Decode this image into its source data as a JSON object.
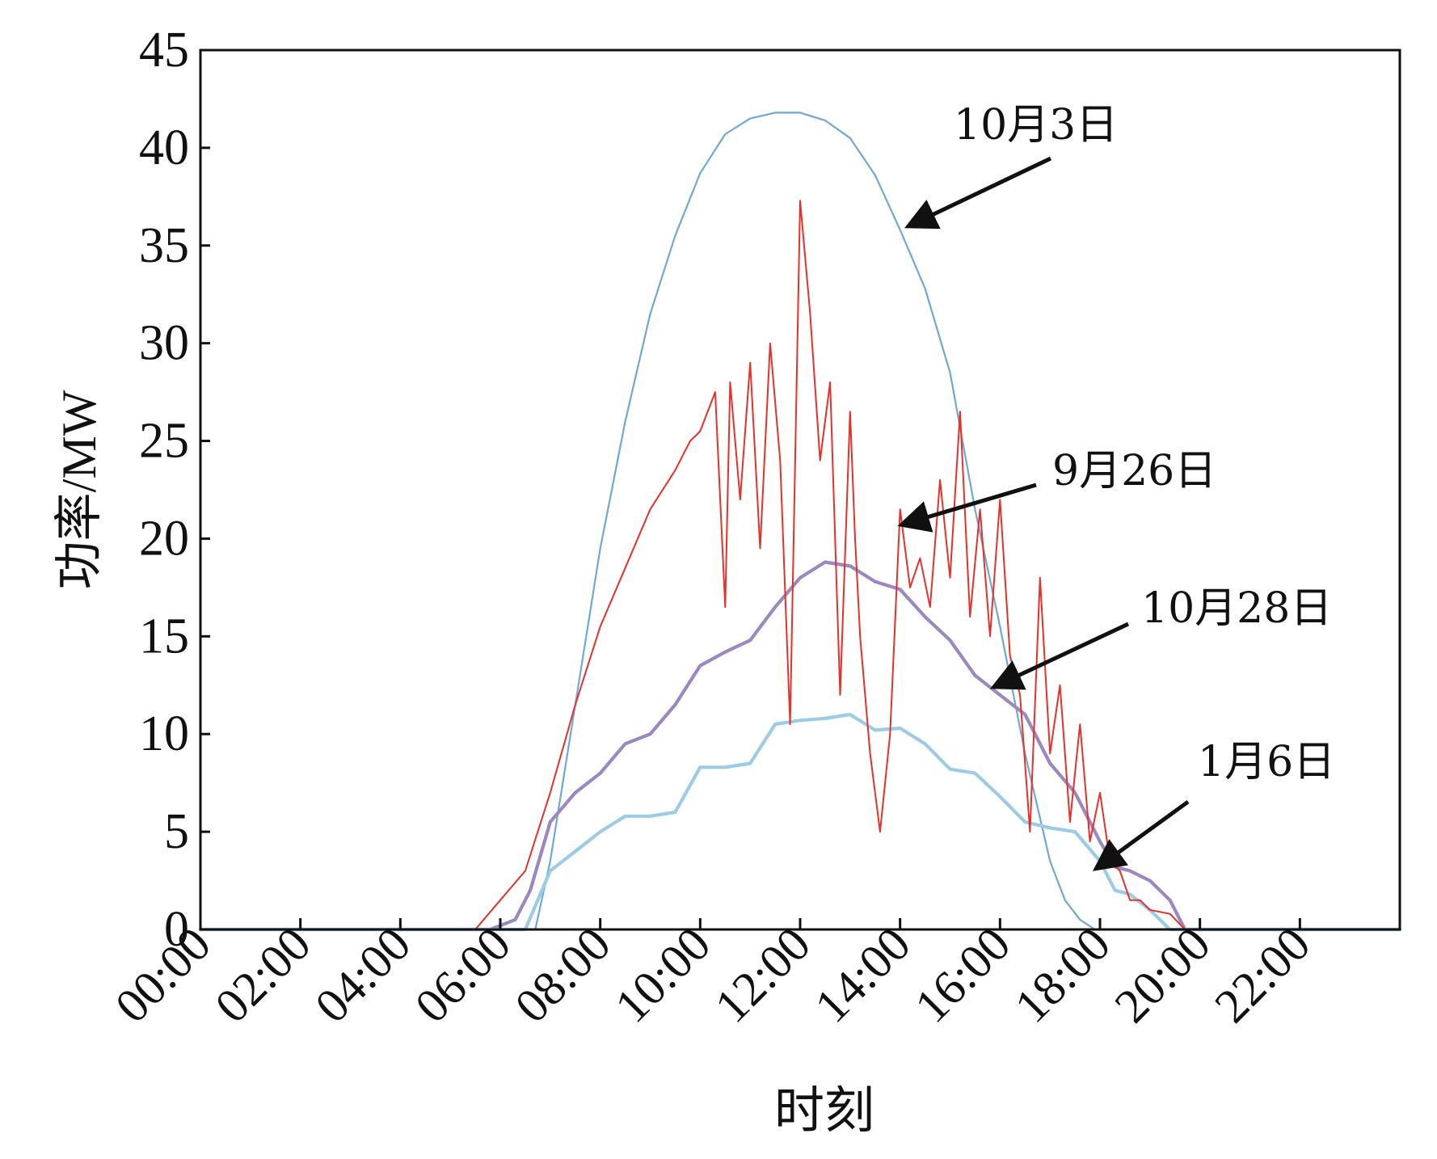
{
  "chart_data": {
    "type": "line",
    "title": "",
    "xlabel": "时刻",
    "ylabel": "功率/MW",
    "xlim": [
      0,
      24
    ],
    "ylim": [
      0,
      45
    ],
    "grid": false,
    "y_ticks": [
      0,
      5,
      10,
      15,
      20,
      25,
      30,
      35,
      40,
      45
    ],
    "y_tick_labels": [
      "0",
      "5",
      "10",
      "15",
      "20",
      "25",
      "30",
      "35",
      "40",
      "45"
    ],
    "x_ticks": [
      0,
      2,
      4,
      6,
      8,
      10,
      12,
      14,
      16,
      18,
      20,
      22
    ],
    "x_tick_labels": [
      "00:00",
      "02:00",
      "04:00",
      "06:00",
      "08:00",
      "10:00",
      "12:00",
      "14:00",
      "16:00",
      "18:00",
      "20:00",
      "22:00"
    ],
    "series": [
      {
        "name": "10月3日",
        "color": "#6fa8d8",
        "x": [
          0,
          6.7,
          7.0,
          7.5,
          8.0,
          8.5,
          9.0,
          9.5,
          10.0,
          10.5,
          11.0,
          11.5,
          12.0,
          12.5,
          13.0,
          13.5,
          14.0,
          14.5,
          15.0,
          15.5,
          16.0,
          16.5,
          17.0,
          17.3,
          17.6,
          17.9,
          24
        ],
        "values": [
          0,
          0,
          3.5,
          11.5,
          19.5,
          26.0,
          31.5,
          35.5,
          38.7,
          40.7,
          41.5,
          41.8,
          41.8,
          41.4,
          40.5,
          38.6,
          35.8,
          32.8,
          28.5,
          21.5,
          15.5,
          9.0,
          3.5,
          1.5,
          0.5,
          0,
          0
        ]
      },
      {
        "name": "9月26日",
        "color": "#e8302a",
        "x": [
          0,
          5.5,
          6.0,
          6.5,
          7.0,
          7.5,
          8.0,
          8.5,
          9.0,
          9.5,
          9.8,
          10.0,
          10.3,
          10.5,
          10.6,
          10.8,
          11.0,
          11.2,
          11.4,
          11.6,
          11.8,
          12.0,
          12.2,
          12.4,
          12.6,
          12.8,
          13.0,
          13.1,
          13.2,
          13.4,
          13.6,
          13.8,
          14.0,
          14.2,
          14.4,
          14.6,
          14.8,
          15.0,
          15.2,
          15.4,
          15.6,
          15.8,
          16.0,
          16.2,
          16.4,
          16.6,
          16.8,
          17.0,
          17.2,
          17.4,
          17.6,
          17.8,
          18.0,
          18.2,
          18.4,
          18.6,
          18.8,
          19.0,
          19.4,
          19.7,
          24
        ],
        "values": [
          0,
          0,
          1.5,
          3.0,
          7.0,
          11.5,
          15.5,
          18.5,
          21.5,
          23.5,
          25.0,
          25.5,
          27.5,
          16.5,
          28.0,
          22.0,
          29.0,
          19.5,
          30.0,
          24.0,
          10.5,
          37.3,
          31.5,
          24.0,
          28.0,
          12.0,
          26.5,
          20.0,
          15.0,
          9.0,
          5.0,
          10.0,
          21.5,
          17.5,
          19.0,
          16.5,
          23.0,
          18.0,
          26.5,
          16.0,
          21.5,
          15.0,
          22.0,
          14.0,
          12.0,
          5.0,
          18.0,
          9.0,
          12.5,
          5.5,
          10.5,
          4.5,
          7.0,
          3.5,
          3.0,
          1.5,
          1.5,
          1.0,
          0.8,
          0,
          0
        ]
      },
      {
        "name": "10月28日",
        "color": "#9b88c0",
        "x": [
          0,
          5.8,
          6.3,
          6.6,
          7.0,
          7.5,
          8.0,
          8.5,
          9.0,
          9.5,
          10.0,
          10.5,
          11.0,
          11.5,
          12.0,
          12.5,
          13.0,
          13.5,
          14.0,
          14.5,
          15.0,
          15.5,
          16.0,
          16.5,
          17.0,
          17.5,
          18.0,
          18.3,
          18.6,
          19.0,
          19.4,
          19.7,
          24
        ],
        "values": [
          0,
          0,
          0.5,
          2.0,
          5.5,
          7.0,
          8.0,
          9.5,
          10.0,
          11.5,
          13.5,
          14.2,
          14.8,
          16.5,
          18.0,
          18.8,
          18.6,
          17.8,
          17.4,
          16.0,
          14.8,
          13.0,
          12.0,
          11.0,
          8.5,
          7.0,
          4.5,
          3.2,
          3.0,
          2.5,
          1.5,
          0,
          0
        ]
      },
      {
        "name": "1月6日",
        "color": "#9ccbe6",
        "x": [
          0,
          6.5,
          7.0,
          7.5,
          8.0,
          8.5,
          9.0,
          9.5,
          10.0,
          10.5,
          11.0,
          11.5,
          12.0,
          12.5,
          13.0,
          13.5,
          14.0,
          14.5,
          15.0,
          15.5,
          16.0,
          16.5,
          17.0,
          17.5,
          18.0,
          18.3,
          18.6,
          19.0,
          19.4,
          24
        ],
        "values": [
          0,
          0,
          3.0,
          4.0,
          5.0,
          5.8,
          5.8,
          6.0,
          8.3,
          8.3,
          8.5,
          10.5,
          10.7,
          10.8,
          11.0,
          10.2,
          10.3,
          9.5,
          8.2,
          8.0,
          6.8,
          5.5,
          5.2,
          5.0,
          3.5,
          2.0,
          1.8,
          1.0,
          0,
          0
        ]
      }
    ],
    "annotations": [
      {
        "text": "10月3日",
        "series": "10月3日"
      },
      {
        "text": "9月26日",
        "series": "9月26日"
      },
      {
        "text": "10月28日",
        "series": "10月28日"
      },
      {
        "text": "1月6日",
        "series": "1月6日"
      }
    ]
  }
}
